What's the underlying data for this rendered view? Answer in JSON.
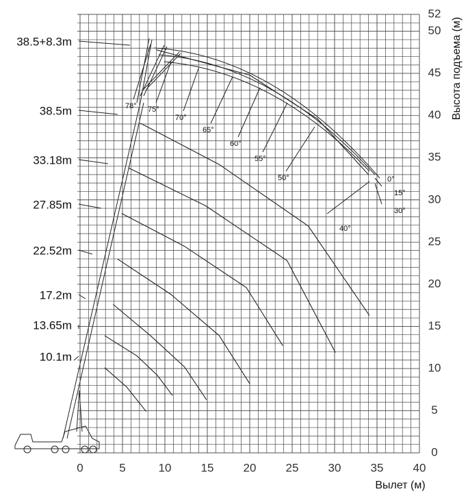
{
  "chart_data": {
    "type": "line",
    "x_label": "Вылет (м)",
    "y_label": "Высота подъема (м)",
    "xlim": [
      0,
      40
    ],
    "ylim": [
      0,
      52
    ],
    "xticks": [
      0,
      5,
      10,
      15,
      20,
      25,
      30,
      35,
      40
    ],
    "yticks": [
      0,
      5,
      10,
      15,
      20,
      25,
      30,
      35,
      40,
      45,
      50,
      52
    ],
    "grid": true,
    "color": "#222222",
    "series": [
      {
        "name": "38.5+8.3m",
        "x": [
          9,
          20,
          28,
          34
        ],
        "values": [
          47.8,
          44.8,
          39.6,
          33
        ]
      },
      {
        "name": "38.5m",
        "x": [
          7.1,
          16.4,
          26.9,
          34.1
        ],
        "values": [
          39.1,
          34.2,
          26.9,
          16.3
        ]
      },
      {
        "name": "33.18m",
        "x": [
          5.7,
          14.8,
          24.4,
          30.1
        ],
        "values": [
          33.8,
          29.3,
          22.8,
          11.9
        ]
      },
      {
        "name": "27.85m",
        "x": [
          4.9,
          12.3,
          19.6,
          23.9
        ],
        "values": [
          28.4,
          24.5,
          19.6,
          12.7
        ]
      },
      {
        "name": "22.52m",
        "x": [
          4.4,
          10.7,
          16.4,
          20
        ],
        "values": [
          23,
          18.8,
          13.9,
          8.2
        ]
      },
      {
        "name": "17.2m",
        "x": [
          3.9,
          8.3,
          12.3,
          14.9
        ],
        "values": [
          17.6,
          13.9,
          10.2,
          6.3
        ]
      },
      {
        "name": "13.65m",
        "x": [
          2.9,
          6.7,
          9.1,
          10.9
        ],
        "values": [
          13.9,
          11.5,
          9.2,
          6.8
        ]
      },
      {
        "name": "10.1m",
        "x": [
          2.9,
          5.5,
          7.8
        ],
        "values": [
          10.1,
          7.8,
          4.9
        ]
      }
    ],
    "angle_labels": [
      "78°",
      "75°",
      "70°",
      "65°",
      "60°",
      "55°",
      "50°",
      "40°",
      "0°",
      "15°",
      "30°"
    ]
  }
}
